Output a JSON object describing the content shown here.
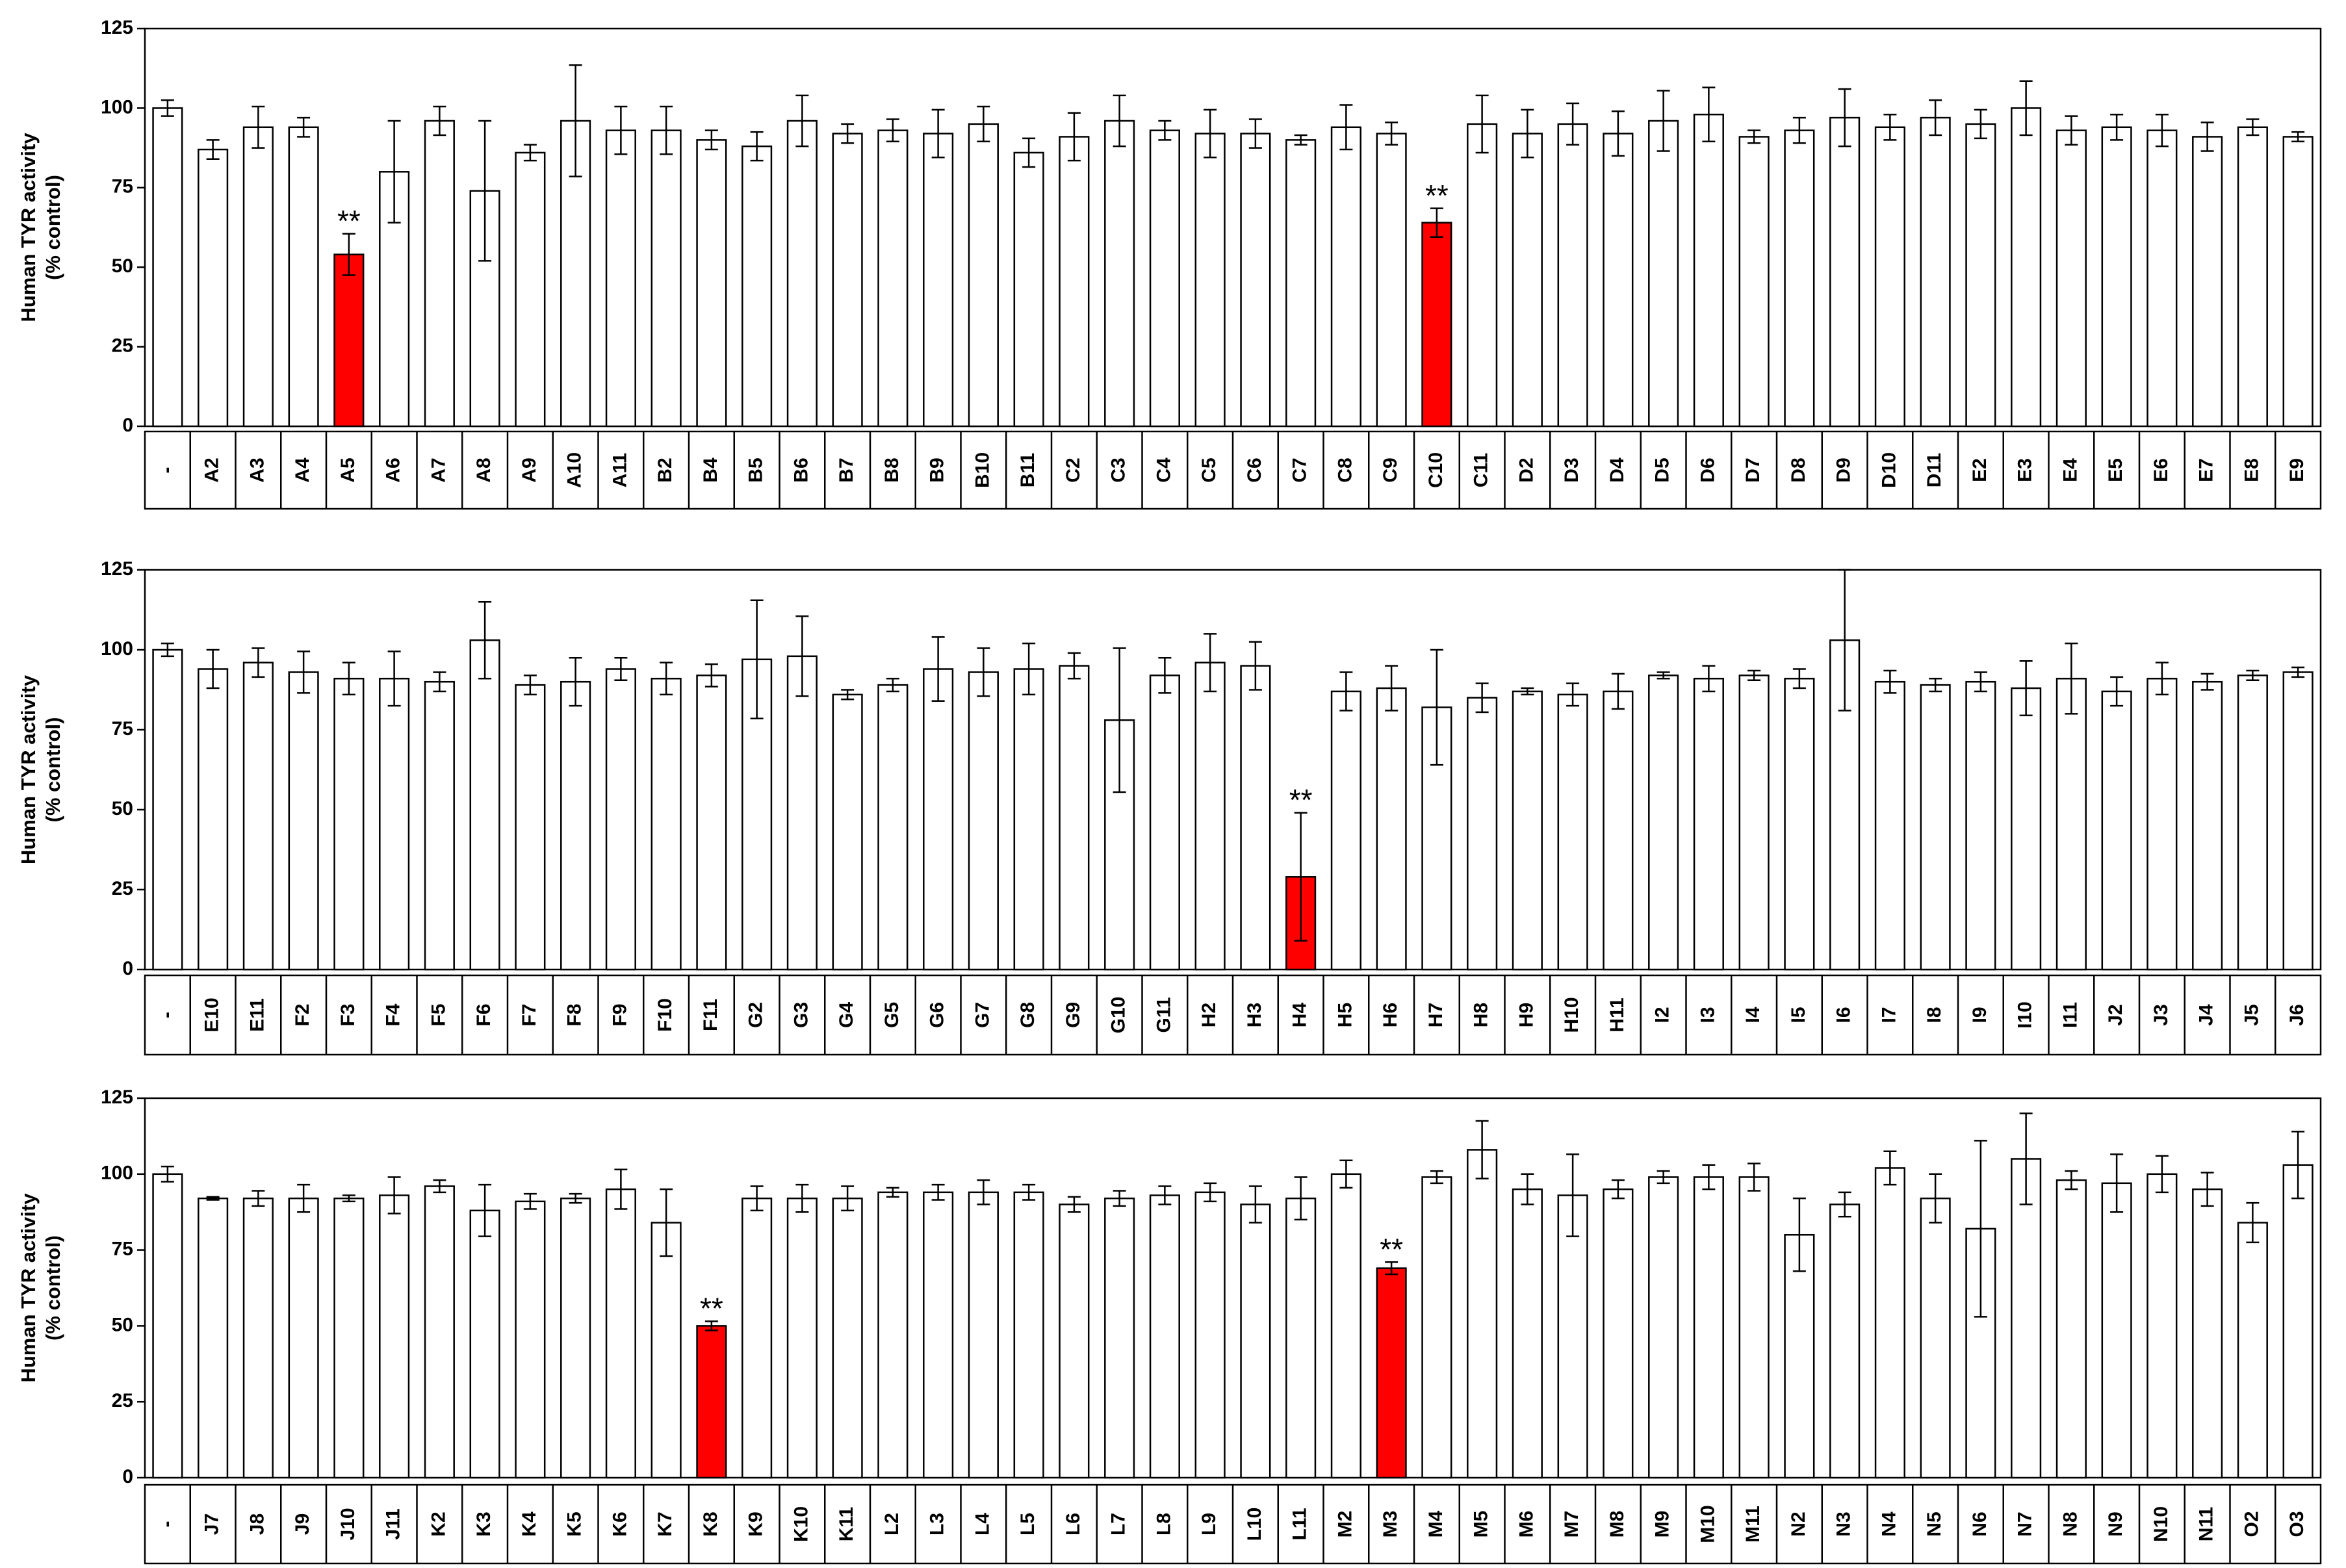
{
  "chart_data": [
    {
      "type": "bar",
      "ylabel": [
        "Human TYR activity",
        "(% control)"
      ],
      "ylim": [
        0,
        125
      ],
      "yticks": [
        0,
        25,
        50,
        75,
        100,
        125
      ],
      "highlight_color": "#ff0000",
      "categories": [
        "-",
        "A2",
        "A3",
        "A4",
        "A5",
        "A6",
        "A7",
        "A8",
        "A9",
        "A10",
        "A11",
        "B2",
        "B4",
        "B5",
        "B6",
        "B7",
        "B8",
        "B9",
        "B10",
        "B11",
        "C2",
        "C3",
        "C4",
        "C5",
        "C6",
        "C7",
        "C8",
        "C9",
        "C10",
        "C11",
        "D2",
        "D3",
        "D4",
        "D5",
        "D6",
        "D7",
        "D8",
        "D9",
        "D10",
        "D11",
        "E2",
        "E3",
        "E4",
        "E5",
        "E6",
        "E7",
        "E8",
        "E9"
      ],
      "values": [
        100,
        87,
        94,
        94,
        54,
        80,
        96,
        74,
        86,
        96,
        93,
        93,
        90,
        88,
        96,
        92,
        93,
        92,
        95,
        86,
        91,
        96,
        93,
        92,
        92,
        90,
        94,
        92,
        64,
        95,
        92,
        95,
        92,
        96,
        98,
        91,
        93,
        97,
        94,
        97,
        95,
        100,
        93,
        94,
        93,
        91,
        94,
        91
      ],
      "errors": [
        2.5,
        3,
        6.5,
        3,
        6.5,
        16,
        4.5,
        22,
        2.5,
        17.5,
        7.5,
        7.5,
        3,
        4.5,
        8,
        3,
        3.5,
        7.5,
        5.5,
        4.5,
        7.5,
        8,
        3,
        7.5,
        4.5,
        1.5,
        7,
        3.5,
        4.5,
        9,
        7.5,
        6.5,
        7,
        9.5,
        8.5,
        2,
        4,
        9,
        4,
        5.5,
        4.5,
        8.5,
        4.5,
        4,
        5,
        4.5,
        2.5,
        1.5
      ],
      "colors": [
        "#ffffff",
        "#ffffff",
        "#ffffff",
        "#ffffff",
        "#ff0000",
        "#ffffff",
        "#ffffff",
        "#ffffff",
        "#ffffff",
        "#ffffff",
        "#ffffff",
        "#ffffff",
        "#ffffff",
        "#ffffff",
        "#ffffff",
        "#ffffff",
        "#ffffff",
        "#ffffff",
        "#ffffff",
        "#ffffff",
        "#ffffff",
        "#ffffff",
        "#ffffff",
        "#ffffff",
        "#ffffff",
        "#ffffff",
        "#ffffff",
        "#ffffff",
        "#ff0000",
        "#ffffff",
        "#ffffff",
        "#ffffff",
        "#ffffff",
        "#ffffff",
        "#ffffff",
        "#ffffff",
        "#ffffff",
        "#ffffff",
        "#ffffff",
        "#ffffff",
        "#ffffff",
        "#ffffff",
        "#ffffff",
        "#ffffff",
        "#ffffff",
        "#ffffff",
        "#ffffff",
        "#ffffff"
      ],
      "annotations": [
        {
          "category": "A5",
          "text": "**"
        },
        {
          "category": "C10",
          "text": "**"
        }
      ]
    },
    {
      "type": "bar",
      "ylabel": [
        "Human TYR activity",
        "(% control)"
      ],
      "ylim": [
        0,
        125
      ],
      "yticks": [
        0,
        25,
        50,
        75,
        100,
        125
      ],
      "highlight_color": "#ff0000",
      "categories": [
        "-",
        "E10",
        "E11",
        "F2",
        "F3",
        "F4",
        "F5",
        "F6",
        "F7",
        "F8",
        "F9",
        "F10",
        "F11",
        "G2",
        "G3",
        "G4",
        "G5",
        "G6",
        "G7",
        "G8",
        "G9",
        "G10",
        "G11",
        "H2",
        "H3",
        "H4",
        "H5",
        "H6",
        "H7",
        "H8",
        "H9",
        "H10",
        "H11",
        "I2",
        "I3",
        "I4",
        "I5",
        "I6",
        "I7",
        "I8",
        "I9",
        "I10",
        "I11",
        "J2",
        "J3",
        "J4",
        "J5",
        "J6"
      ],
      "values": [
        100,
        94,
        96,
        93,
        91,
        91,
        90,
        103,
        89,
        90,
        94,
        91,
        92,
        97,
        98,
        86,
        89,
        94,
        93,
        94,
        95,
        78,
        92,
        96,
        95,
        29,
        87,
        88,
        82,
        85,
        87,
        86,
        87,
        92,
        91,
        92,
        91,
        103,
        90,
        89,
        90,
        88,
        91,
        87,
        91,
        90,
        92,
        93
      ],
      "errors": [
        2,
        6,
        4.5,
        6.5,
        5,
        8.5,
        3,
        12,
        3,
        7.5,
        3.5,
        5,
        3.5,
        18.5,
        12.5,
        1.5,
        2,
        10,
        7.5,
        8,
        4,
        22.5,
        5.5,
        9,
        7.5,
        20,
        6,
        7,
        18,
        4.5,
        1,
        3.5,
        5.5,
        1,
        4,
        1.5,
        3,
        22,
        3.5,
        2,
        3,
        8.5,
        11,
        4.5,
        5,
        2.5,
        1.5,
        1.5
      ],
      "colors": [
        "#ffffff",
        "#ffffff",
        "#ffffff",
        "#ffffff",
        "#ffffff",
        "#ffffff",
        "#ffffff",
        "#ffffff",
        "#ffffff",
        "#ffffff",
        "#ffffff",
        "#ffffff",
        "#ffffff",
        "#ffffff",
        "#ffffff",
        "#ffffff",
        "#ffffff",
        "#ffffff",
        "#ffffff",
        "#ffffff",
        "#ffffff",
        "#ffffff",
        "#ffffff",
        "#ffffff",
        "#ffffff",
        "#ff0000",
        "#ffffff",
        "#ffffff",
        "#ffffff",
        "#ffffff",
        "#ffffff",
        "#ffffff",
        "#ffffff",
        "#ffffff",
        "#ffffff",
        "#ffffff",
        "#ffffff",
        "#ffffff",
        "#ffffff",
        "#ffffff",
        "#ffffff",
        "#ffffff",
        "#ffffff",
        "#ffffff",
        "#ffffff",
        "#ffffff",
        "#ffffff",
        "#ffffff"
      ],
      "annotations": [
        {
          "category": "H4",
          "text": "**"
        }
      ]
    },
    {
      "type": "bar",
      "ylabel": [
        "Human TYR activity",
        "(% control)"
      ],
      "ylim": [
        0,
        125
      ],
      "yticks": [
        0,
        25,
        50,
        75,
        100,
        125
      ],
      "highlight_color": "#ff0000",
      "categories": [
        "-",
        "J7",
        "J8",
        "J9",
        "J10",
        "J11",
        "K2",
        "K3",
        "K4",
        "K5",
        "K6",
        "K7",
        "K8",
        "K9",
        "K10",
        "K11",
        "L2",
        "L3",
        "L4",
        "L5",
        "L6",
        "L7",
        "L8",
        "L9",
        "L10",
        "L11",
        "M2",
        "M3",
        "M4",
        "M5",
        "M6",
        "M7",
        "M8",
        "M9",
        "M10",
        "M11",
        "N2",
        "N3",
        "N4",
        "N5",
        "N6",
        "N7",
        "N8",
        "N9",
        "N10",
        "N11",
        "O2",
        "O3"
      ],
      "values": [
        100,
        92,
        92,
        92,
        92,
        93,
        96,
        88,
        91,
        92,
        95,
        84,
        50,
        92,
        92,
        92,
        94,
        94,
        94,
        94,
        90,
        92,
        93,
        94,
        90,
        92,
        100,
        69,
        99,
        108,
        95,
        93,
        95,
        99,
        99,
        99,
        80,
        90,
        102,
        92,
        82,
        105,
        98,
        97,
        100,
        95,
        84,
        103
      ],
      "errors": [
        2.5,
        0.5,
        2.5,
        4.5,
        1,
        6,
        2,
        8.5,
        2.5,
        1.5,
        6.5,
        11,
        1.5,
        4,
        4.5,
        4,
        1.5,
        2.5,
        4,
        2.5,
        2.5,
        2.5,
        3,
        3,
        6,
        7,
        4.5,
        2,
        2,
        9.5,
        5,
        13.5,
        3,
        2,
        4,
        4.5,
        12,
        4,
        5.5,
        8,
        29,
        15,
        3,
        9.5,
        6,
        5.5,
        6.5,
        11
      ],
      "colors": [
        "#ffffff",
        "#ffffff",
        "#ffffff",
        "#ffffff",
        "#ffffff",
        "#ffffff",
        "#ffffff",
        "#ffffff",
        "#ffffff",
        "#ffffff",
        "#ffffff",
        "#ffffff",
        "#ff0000",
        "#ffffff",
        "#ffffff",
        "#ffffff",
        "#ffffff",
        "#ffffff",
        "#ffffff",
        "#ffffff",
        "#ffffff",
        "#ffffff",
        "#ffffff",
        "#ffffff",
        "#ffffff",
        "#ffffff",
        "#ffffff",
        "#ff0000",
        "#ffffff",
        "#ffffff",
        "#ffffff",
        "#ffffff",
        "#ffffff",
        "#ffffff",
        "#ffffff",
        "#ffffff",
        "#ffffff",
        "#ffffff",
        "#ffffff",
        "#ffffff",
        "#ffffff",
        "#ffffff",
        "#ffffff",
        "#ffffff",
        "#ffffff",
        "#ffffff",
        "#ffffff",
        "#ffffff"
      ],
      "annotations": [
        {
          "category": "K8",
          "text": "**"
        },
        {
          "category": "M3",
          "text": "**"
        }
      ]
    }
  ]
}
